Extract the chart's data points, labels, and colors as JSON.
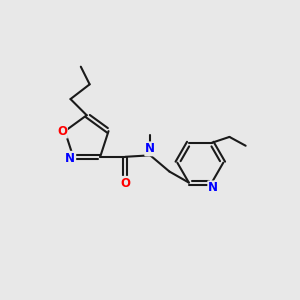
{
  "bg_color": "#e8e8e8",
  "bond_color": "#1a1a1a",
  "bond_width": 1.5,
  "dbo": 0.07,
  "atom_colors": {
    "O": "#ff0000",
    "N": "#0000ff",
    "C": "#1a1a1a"
  },
  "font_size": 8.5,
  "fig_size": [
    3.0,
    3.0
  ],
  "dpi": 100
}
